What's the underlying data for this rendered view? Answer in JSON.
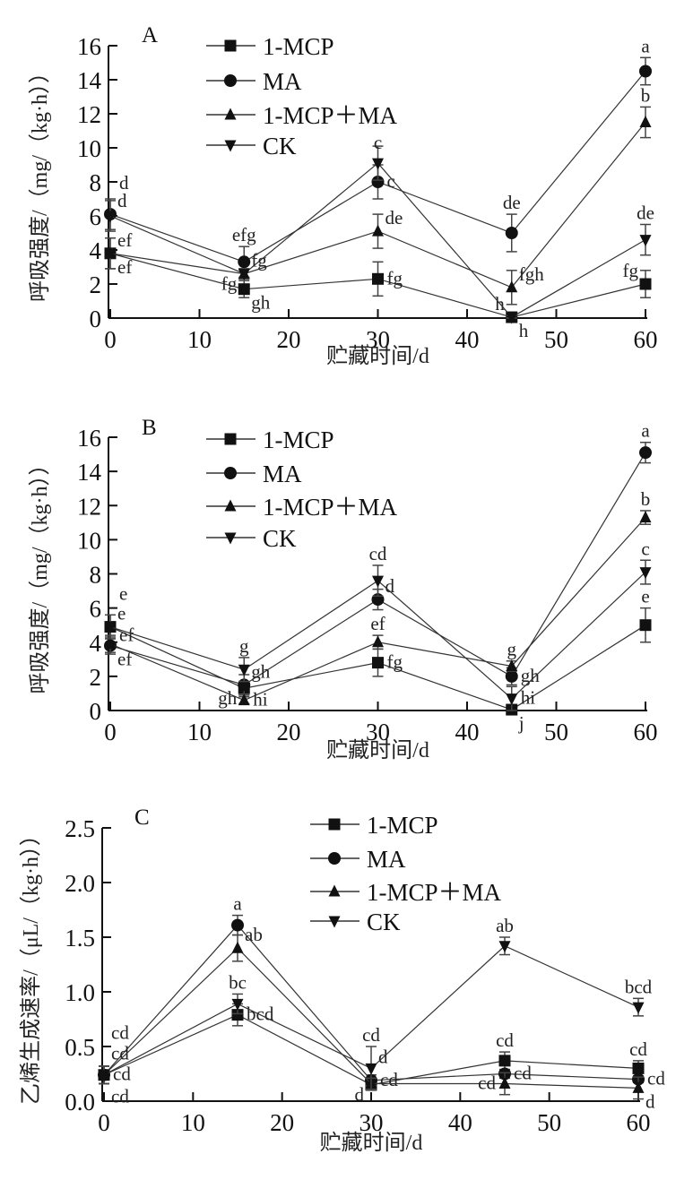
{
  "chart_data": [
    {
      "type": "line",
      "panel_label": "A",
      "xlabel": "贮藏时间/d",
      "ylabel": "呼吸强度/（mg/（kg·h））",
      "xlim": [
        0,
        60
      ],
      "ylim": [
        0,
        16
      ],
      "xticks": [
        0,
        10,
        20,
        30,
        40,
        50,
        60
      ],
      "yticks": [
        0,
        2,
        4,
        6,
        8,
        10,
        12,
        14,
        16
      ],
      "grid": false,
      "legend_placement": "top-center",
      "x": [
        0,
        15,
        30,
        45,
        60
      ],
      "series": [
        {
          "name": "1-MCP",
          "marker": "square",
          "values": [
            3.8,
            1.7,
            2.3,
            0.05,
            2.0
          ],
          "error": [
            0.9,
            0.5,
            1.0,
            0.1,
            0.8
          ],
          "letters": [
            "ef",
            "gh",
            "fg",
            "h",
            "fg"
          ],
          "letter_pos": [
            "below-right",
            "below-right",
            "right",
            "upper-left",
            "upper-left"
          ]
        },
        {
          "name": "MA",
          "marker": "circle",
          "values": [
            6.1,
            3.3,
            8.0,
            5.0,
            14.5
          ],
          "error": [
            0.9,
            0.9,
            1.0,
            1.1,
            0.8
          ],
          "letters": [
            "d",
            "efg",
            "c",
            "de",
            "a"
          ],
          "letter_pos": [
            "upper-right",
            "above",
            "right",
            "above",
            "above"
          ]
        },
        {
          "name": "1-MCP＋MA",
          "marker": "triangle-up",
          "values": [
            3.8,
            2.6,
            5.1,
            1.8,
            11.5
          ],
          "error": [
            0.9,
            0.3,
            1.0,
            1.0,
            0.9
          ],
          "letters": [
            "ef",
            "fg",
            "de",
            "fgh",
            "b"
          ],
          "letter_pos": [
            "upper-right",
            "lower-left",
            "upper-right",
            "upper-right",
            "above"
          ]
        },
        {
          "name": "CK",
          "marker": "triangle-down",
          "values": [
            6.0,
            2.6,
            9.1,
            0.05,
            4.6
          ],
          "error": [
            0.9,
            0.3,
            1.0,
            0.1,
            0.9
          ],
          "letters": [
            "d",
            "fg",
            "c",
            "h",
            "de"
          ],
          "letter_pos": [
            "right",
            "upper-right",
            "above",
            "below-right",
            "above"
          ]
        }
      ]
    },
    {
      "type": "line",
      "panel_label": "B",
      "xlabel": "贮藏时间/d",
      "ylabel": "呼吸强度/（mg/（kg·h））",
      "xlim": [
        0,
        60
      ],
      "ylim": [
        0,
        16
      ],
      "xticks": [
        0,
        10,
        20,
        30,
        40,
        50,
        60
      ],
      "yticks": [
        0,
        2,
        4,
        6,
        8,
        10,
        12,
        14,
        16
      ],
      "grid": false,
      "legend_placement": "top-center",
      "x": [
        0,
        15,
        30,
        45,
        60
      ],
      "series": [
        {
          "name": "1-MCP",
          "marker": "square",
          "values": [
            4.9,
            1.3,
            2.8,
            0.05,
            5.0
          ],
          "error": [
            0.7,
            0.4,
            0.8,
            0.1,
            1.0
          ],
          "letters": [
            "e",
            "gh",
            "fg",
            "j",
            "e"
          ],
          "letter_pos": [
            "upper-right",
            "lower-left",
            "right",
            "below-right",
            "above"
          ]
        },
        {
          "name": "MA",
          "marker": "circle",
          "values": [
            3.8,
            1.5,
            6.5,
            2.0,
            15.1
          ],
          "error": [
            0.5,
            0.6,
            0.6,
            0.5,
            0.6
          ],
          "letters": [
            "ef",
            "gh",
            "d",
            "gh",
            "a"
          ],
          "letter_pos": [
            "below-right",
            "upper-right",
            "upper-right",
            "right",
            "above"
          ]
        },
        {
          "name": "1-MCP＋MA",
          "marker": "triangle-up",
          "values": [
            3.9,
            0.6,
            4.0,
            2.6,
            11.3
          ],
          "error": [
            0.5,
            0.2,
            0.4,
            0.3,
            0.4
          ],
          "letters": [
            "ef",
            "hi",
            "ef",
            "g",
            "b"
          ],
          "letter_pos": [
            "right",
            "right",
            "above",
            "above",
            "above"
          ]
        },
        {
          "name": "CK",
          "marker": "triangle-down",
          "values": [
            4.9,
            2.4,
            7.6,
            0.7,
            8.1
          ],
          "error": [
            0.7,
            0.7,
            0.9,
            0.7,
            0.7
          ],
          "letters": [
            "e",
            "g",
            "cd",
            "hi",
            "c"
          ],
          "letter_pos": [
            "right",
            "above",
            "above",
            "right",
            "above"
          ]
        }
      ]
    },
    {
      "type": "line",
      "panel_label": "C",
      "xlabel": "贮藏时间/d",
      "ylabel": "乙烯生成速率/（μL/（kg·h））",
      "xlim": [
        0,
        60
      ],
      "ylim": [
        0,
        2.5
      ],
      "xticks": [
        0,
        10,
        20,
        30,
        40,
        50,
        60
      ],
      "yticks": [
        0.0,
        0.5,
        1.0,
        1.5,
        2.0,
        2.5
      ],
      "ytick_labels": [
        "0.0",
        "0.5",
        "1.0",
        "1.5",
        "2.0",
        "2.5"
      ],
      "grid": false,
      "legend_placement": "top-center",
      "x": [
        0,
        15,
        30,
        45,
        60
      ],
      "series": [
        {
          "name": "1-MCP",
          "marker": "square",
          "values": [
            0.24,
            0.79,
            0.15,
            0.37,
            0.3
          ],
          "error": [
            0.08,
            0.1,
            0.05,
            0.08,
            0.07
          ],
          "letters": [
            "cd",
            "bcd",
            "d",
            "cd",
            "cd"
          ],
          "letter_pos": [
            "right",
            "right",
            "lower-left",
            "above",
            "above"
          ]
        },
        {
          "name": "MA",
          "marker": "circle",
          "values": [
            0.24,
            1.61,
            0.19,
            0.25,
            0.2
          ],
          "error": [
            0.08,
            0.09,
            0.05,
            0.04,
            0.03
          ],
          "letters": [
            "cd",
            "a",
            "cd",
            "cd",
            "cd"
          ],
          "letter_pos": [
            "upper-right",
            "above",
            "right",
            "right",
            "right"
          ]
        },
        {
          "name": "1-MCP＋MA",
          "marker": "triangle-up",
          "values": [
            0.24,
            1.4,
            0.16,
            0.16,
            0.12
          ],
          "error": [
            0.08,
            0.12,
            0.05,
            0.1,
            0.1
          ],
          "letters": [
            "cd",
            "ab",
            "d",
            "cd",
            "d"
          ],
          "letter_pos": [
            "below-right",
            "upper-right",
            "below-right",
            "left",
            "below-right"
          ]
        },
        {
          "name": "CK",
          "marker": "triangle-down",
          "values": [
            0.24,
            0.89,
            0.3,
            1.42,
            0.86
          ],
          "error": [
            0.08,
            0.09,
            0.2,
            0.08,
            0.08
          ],
          "letters": [
            "cd",
            "bc",
            "cd",
            "ab",
            "bcd"
          ],
          "letter_pos": [
            "upper-right2",
            "above",
            "above",
            "above",
            "above"
          ]
        }
      ]
    }
  ]
}
